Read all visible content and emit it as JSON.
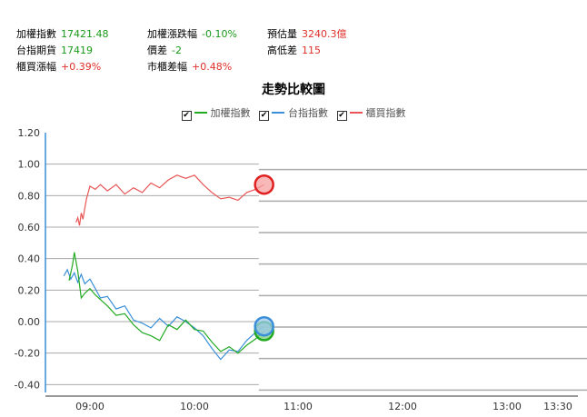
{
  "stats": [
    {
      "label": "加權指數",
      "value": "17421.48",
      "color": "#1a9a1a"
    },
    {
      "label": "加權漲跌幅",
      "value": "-0.10%",
      "color": "#1a9a1a"
    },
    {
      "label": "預估量",
      "value": "3240.3億",
      "color": "#e0302a"
    },
    {
      "label": "台指期貨",
      "value": "17419",
      "color": "#1a9a1a"
    },
    {
      "label": "價差",
      "value": "-2",
      "color": "#1a9a1a"
    },
    {
      "label": "高低差",
      "value": "115",
      "color": "#e0302a"
    },
    {
      "label": "櫃買漲幅",
      "value": "+0.39%",
      "color": "#e0302a"
    },
    {
      "label": "市櫃差幅",
      "value": "+0.48%",
      "color": "#e0302a"
    }
  ],
  "chart_data": {
    "type": "line",
    "title": "走勢比較圖",
    "x_ticks": [
      "09:00",
      "10:00",
      "11:00",
      "12:00",
      "13:00",
      "13:30"
    ],
    "y_ticks": [
      "1.20",
      "1.00",
      "0.80",
      "0.60",
      "0.40",
      "0.20",
      "0.00",
      "-0.20",
      "-0.40"
    ],
    "ylim": [
      -0.45,
      1.2
    ],
    "xlim": [
      "08:45",
      "13:30"
    ],
    "grid": true,
    "legend": "top-center",
    "series": [
      {
        "name": "加權指數",
        "color": "#22aa22",
        "x": [
          "08:48",
          "08:50",
          "08:51",
          "08:53",
          "08:55",
          "08:57",
          "09:00",
          "09:03",
          "09:06",
          "09:10",
          "09:15",
          "09:20",
          "09:25",
          "09:30",
          "09:35",
          "09:40",
          "09:45",
          "09:50",
          "09:55",
          "10:00",
          "10:05",
          "10:10",
          "10:15",
          "10:20",
          "10:25",
          "10:30",
          "10:35",
          "10:40"
        ],
        "y": [
          0.26,
          0.36,
          0.44,
          0.32,
          0.15,
          0.18,
          0.21,
          0.17,
          0.14,
          0.1,
          0.04,
          0.05,
          -0.02,
          -0.07,
          -0.09,
          -0.12,
          -0.02,
          -0.05,
          0.01,
          -0.05,
          -0.06,
          -0.13,
          -0.19,
          -0.16,
          -0.2,
          -0.15,
          -0.11,
          -0.06
        ]
      },
      {
        "name": "台指指數",
        "color": "#3a8fd8",
        "x": [
          "08:45",
          "08:47",
          "08:49",
          "08:51",
          "08:53",
          "08:55",
          "08:57",
          "09:00",
          "09:03",
          "09:06",
          "09:10",
          "09:15",
          "09:20",
          "09:25",
          "09:30",
          "09:35",
          "09:40",
          "09:45",
          "09:50",
          "09:55",
          "10:00",
          "10:05",
          "10:10",
          "10:15",
          "10:20",
          "10:25",
          "10:30",
          "10:35",
          "10:40"
        ],
        "y": [
          0.29,
          0.33,
          0.27,
          0.31,
          0.25,
          0.3,
          0.24,
          0.27,
          0.21,
          0.15,
          0.16,
          0.08,
          0.1,
          0.01,
          -0.01,
          -0.04,
          0.02,
          -0.03,
          0.03,
          0.0,
          -0.04,
          -0.09,
          -0.17,
          -0.24,
          -0.18,
          -0.19,
          -0.12,
          -0.07,
          -0.03
        ]
      },
      {
        "name": "櫃買指數",
        "color": "#e85555",
        "x": [
          "08:52",
          "08:53",
          "08:54",
          "08:55",
          "08:56",
          "08:57",
          "08:58",
          "09:00",
          "09:03",
          "09:06",
          "09:10",
          "09:15",
          "09:20",
          "09:25",
          "09:30",
          "09:35",
          "09:40",
          "09:45",
          "09:50",
          "09:55",
          "10:00",
          "10:05",
          "10:10",
          "10:15",
          "10:20",
          "10:25",
          "10:30",
          "10:35",
          "10:40"
        ],
        "y": [
          0.63,
          0.66,
          0.61,
          0.69,
          0.65,
          0.72,
          0.78,
          0.86,
          0.84,
          0.87,
          0.83,
          0.87,
          0.81,
          0.85,
          0.82,
          0.88,
          0.85,
          0.9,
          0.93,
          0.91,
          0.93,
          0.87,
          0.82,
          0.78,
          0.79,
          0.77,
          0.82,
          0.84,
          0.87
        ]
      }
    ]
  }
}
